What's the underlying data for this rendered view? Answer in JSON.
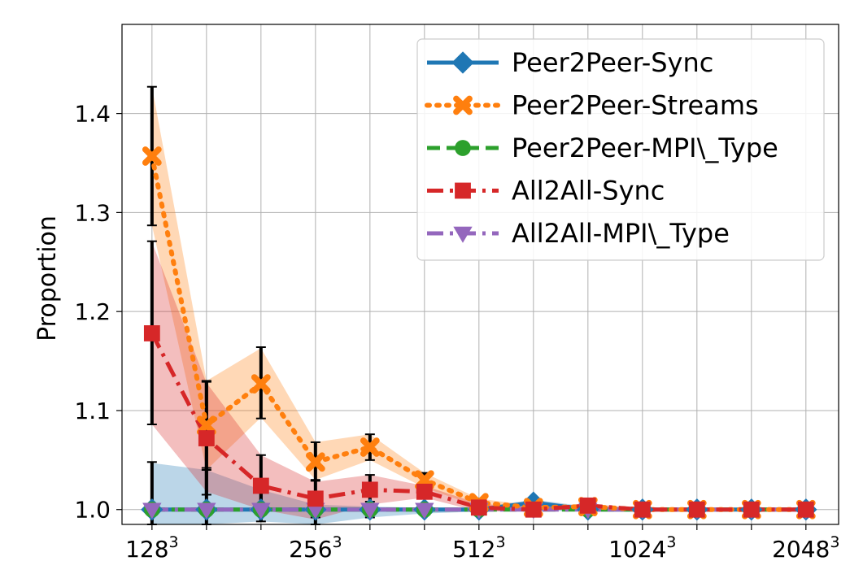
{
  "chart_data": {
    "type": "line",
    "title": "",
    "xlabel": "",
    "ylabel": "Proportion",
    "ylim": [
      0.985,
      1.49
    ],
    "x_positions": [
      0,
      1,
      2,
      3,
      4,
      5,
      6,
      7,
      8,
      9,
      10,
      11,
      12
    ],
    "x_tick_labels": [
      {
        "pos": 0,
        "base": "128",
        "exp": "3"
      },
      {
        "pos": 3,
        "base": "256",
        "exp": "3"
      },
      {
        "pos": 6,
        "base": "512",
        "exp": "3"
      },
      {
        "pos": 9,
        "base": "1024",
        "exp": "3"
      },
      {
        "pos": 12,
        "base": "2048",
        "exp": "3"
      }
    ],
    "y_ticks": [
      1.0,
      1.1,
      1.2,
      1.3,
      1.4
    ],
    "y_tick_labels": [
      "1.0",
      "1.1",
      "1.2",
      "1.3",
      "1.4"
    ],
    "grid": true,
    "legend_position": "top-right",
    "series": [
      {
        "name": "Peer2Peer-Sync",
        "color": "#1f77b4",
        "marker": "diamond",
        "dash": "solid",
        "values": [
          1.0,
          1.0,
          1.0,
          1.0,
          1.0,
          1.0,
          1.0,
          1.007,
          1.0,
          1.0,
          1.0,
          1.0,
          1.0
        ],
        "band_low": [
          0.985,
          0.985,
          0.988,
          0.985,
          0.992,
          0.996,
          0.998,
          0.999,
          0.998,
          0.999,
          0.999,
          0.999,
          0.999
        ],
        "band_high": [
          1.047,
          1.04,
          1.02,
          1.005,
          1.003,
          1.002,
          1.002,
          1.01,
          1.003,
          1.002,
          1.001,
          1.001,
          1.001
        ],
        "err_low": [
          0.985,
          0.985,
          0.988,
          0.985,
          0.992,
          0.997,
          0.998,
          1.004,
          0.999,
          0.999,
          0.999,
          0.999,
          0.999
        ],
        "err_high": [
          1.048,
          1.042,
          1.02,
          1.012,
          1.008,
          1.003,
          1.003,
          1.01,
          1.003,
          1.002,
          1.001,
          1.001,
          1.001
        ]
      },
      {
        "name": "Peer2Peer-Streams",
        "color": "#ff7f0e",
        "marker": "x",
        "dash": "dotted",
        "values": [
          1.357,
          1.085,
          1.127,
          1.048,
          1.063,
          1.03,
          1.007,
          1.002,
          1.003,
          1.0,
          1.0,
          1.0,
          1.0
        ],
        "band_low": [
          1.287,
          1.04,
          1.093,
          1.03,
          1.05,
          1.022,
          1.003,
          1.0,
          1.001,
          0.999,
          0.999,
          0.999,
          0.999
        ],
        "band_high": [
          1.427,
          1.13,
          1.163,
          1.068,
          1.076,
          1.037,
          1.011,
          1.004,
          1.005,
          1.001,
          1.001,
          1.001,
          1.001
        ],
        "err_low": [
          1.287,
          1.04,
          1.092,
          1.03,
          1.05,
          1.022,
          1.003,
          1.0,
          1.001,
          0.999,
          0.999,
          0.999,
          0.999
        ],
        "err_high": [
          1.427,
          1.13,
          1.164,
          1.068,
          1.076,
          1.037,
          1.011,
          1.004,
          1.005,
          1.001,
          1.001,
          1.001,
          1.001
        ]
      },
      {
        "name": "Peer2Peer-MPI\\_Type",
        "color": "#2ca02c",
        "marker": "circle",
        "dash": "dashed",
        "values": [
          1.0,
          1.0,
          1.0,
          1.0,
          1.0,
          1.0,
          1.0,
          1.0,
          1.0,
          1.0,
          1.0,
          1.0,
          1.0
        ]
      },
      {
        "name": "All2All-Sync",
        "color": "#d62728",
        "marker": "square",
        "dash": "dashdot",
        "values": [
          1.178,
          1.072,
          1.024,
          1.011,
          1.02,
          1.018,
          1.002,
          1.0,
          1.004,
          1.0,
          1.0,
          1.0,
          1.0
        ],
        "band_low": [
          1.086,
          1.018,
          1.0,
          0.99,
          1.005,
          1.012,
          0.998,
          0.998,
          1.002,
          0.999,
          0.999,
          0.999,
          0.999
        ],
        "band_high": [
          1.27,
          1.128,
          1.055,
          1.028,
          1.035,
          1.024,
          1.006,
          1.002,
          1.006,
          1.001,
          1.001,
          1.001,
          1.001
        ],
        "err_low": [
          1.086,
          1.015,
          0.995,
          0.992,
          1.005,
          1.012,
          0.998,
          0.998,
          1.002,
          0.999,
          0.999,
          0.999,
          0.999
        ],
        "err_high": [
          1.271,
          1.129,
          1.055,
          1.029,
          1.035,
          1.024,
          1.006,
          1.002,
          1.006,
          1.001,
          1.001,
          1.001,
          1.001
        ]
      },
      {
        "name": "All2All-MPI\\_Type",
        "color": "#9467bd",
        "marker": "triangle-down",
        "dash": "dashdot",
        "values": [
          1.0,
          1.0,
          1.0,
          1.0,
          1.0,
          1.0,
          1.0,
          1.0,
          1.0,
          1.0,
          1.0,
          1.0,
          1.0
        ]
      }
    ]
  }
}
